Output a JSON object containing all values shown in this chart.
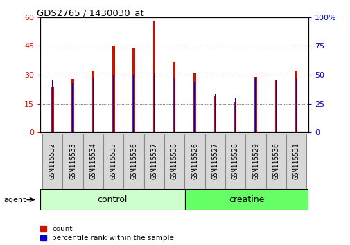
{
  "title": "GDS2765 / 1430030_at",
  "samples": [
    "GSM115532",
    "GSM115533",
    "GSM115534",
    "GSM115535",
    "GSM115536",
    "GSM115537",
    "GSM115538",
    "GSM115526",
    "GSM115527",
    "GSM115528",
    "GSM115529",
    "GSM115530",
    "GSM115531"
  ],
  "count": [
    24,
    28,
    32,
    45,
    44,
    58,
    37,
    31,
    19,
    16,
    29,
    27,
    32
  ],
  "percentile": [
    46,
    43,
    47,
    50,
    50,
    52,
    47,
    44,
    33,
    30,
    47,
    45,
    47
  ],
  "count_color": "#cc1100",
  "percentile_color": "#0000cc",
  "ylim_left": [
    0,
    60
  ],
  "ylim_right": [
    0,
    100
  ],
  "yticks_left": [
    0,
    15,
    30,
    45,
    60
  ],
  "ytick_labels_left": [
    "0",
    "15",
    "30",
    "45",
    "60"
  ],
  "yticks_right": [
    0,
    25,
    50,
    75,
    100
  ],
  "ytick_labels_right": [
    "0",
    "25",
    "50",
    "75",
    "100%"
  ],
  "n_control": 7,
  "n_creatine": 6,
  "control_color": "#ccffcc",
  "creatine_color": "#66ff66",
  "group_label_control": "control",
  "group_label_creatine": "creatine",
  "agent_label": "agent",
  "legend_count": "count",
  "legend_percentile": "percentile rank within the sample",
  "bar_width": 0.12,
  "bg_color": "#ffffff",
  "tick_color_left": "#cc1100",
  "tick_color_right": "#0000cc",
  "grid_color": "#000000",
  "cell_bg": "#d8d8d8",
  "cell_border": "#888888"
}
